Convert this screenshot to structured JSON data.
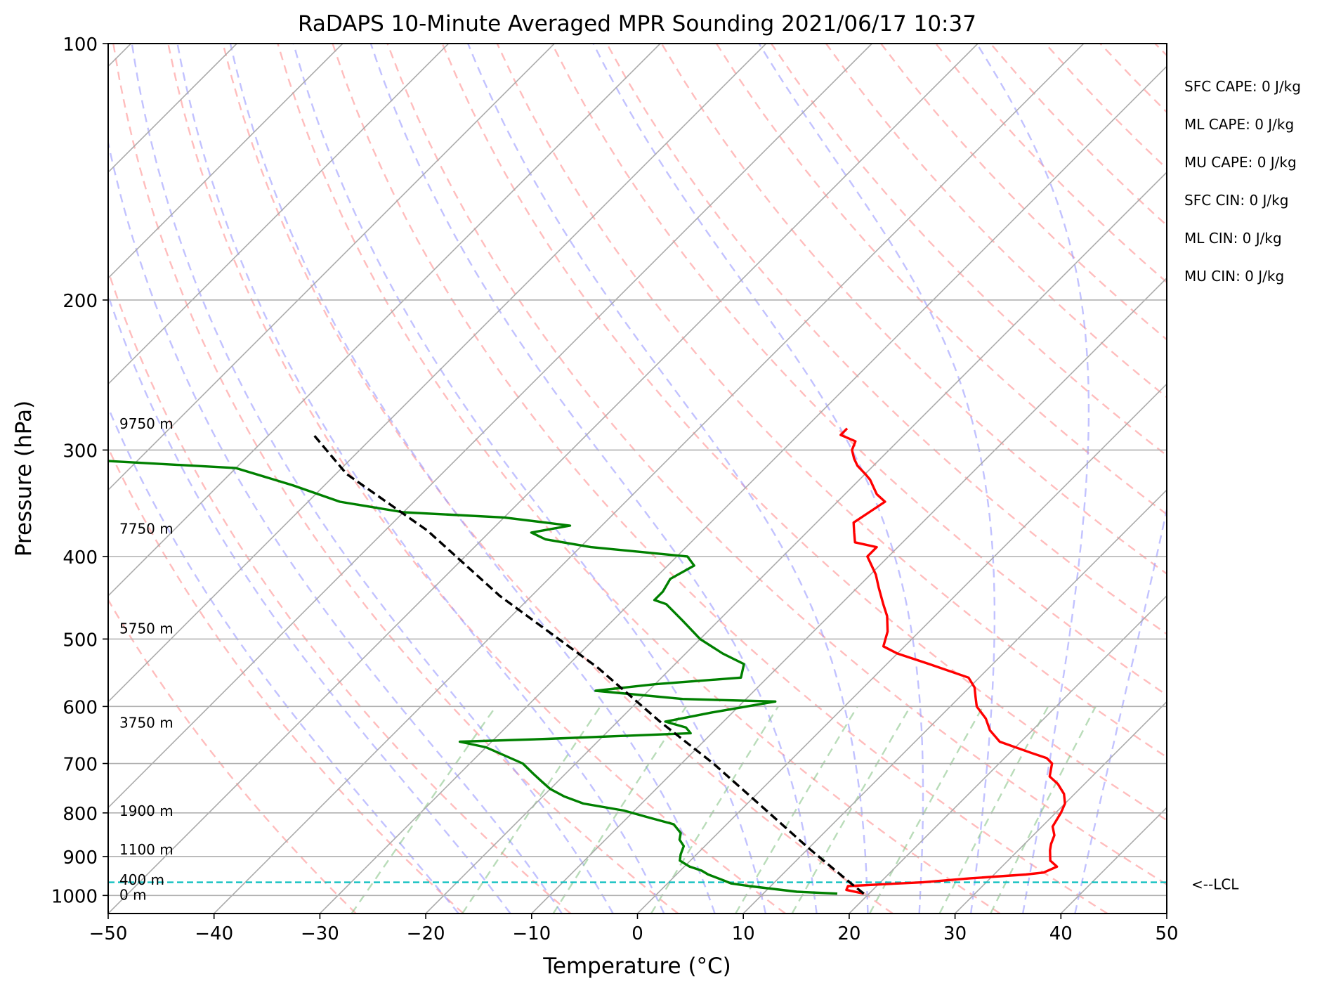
{
  "chart_data": {
    "type": "line",
    "title": "RaDAPS 10-Minute Averaged MPR Sounding 2021/06/17 10:37",
    "xlabel": "Temperature (°C)",
    "ylabel": "Pressure (hPa)",
    "xlim": [
      -50,
      50
    ],
    "ylim": [
      1050,
      100
    ],
    "y_scale": "log",
    "skew": true,
    "grid": true,
    "x_ticks": [
      "−50",
      "−40",
      "−30",
      "−20",
      "−10",
      "0",
      "10",
      "20",
      "30",
      "40",
      "50"
    ],
    "x_tick_values": [
      -50,
      -40,
      -30,
      -20,
      -10,
      0,
      10,
      20,
      30,
      40,
      50
    ],
    "y_ticks": [
      "100",
      "200",
      "300",
      "400",
      "500",
      "600",
      "700",
      "800",
      "900",
      "1000"
    ],
    "y_tick_values": [
      100,
      200,
      300,
      400,
      500,
      600,
      700,
      800,
      900,
      1000
    ],
    "height_labels": [
      {
        "text": "9750 m",
        "p": 280
      },
      {
        "text": "7750 m",
        "p": 372
      },
      {
        "text": "5750 m",
        "p": 487
      },
      {
        "text": "3750 m",
        "p": 628
      },
      {
        "text": "1900 m",
        "p": 797
      },
      {
        "text": "1100 m",
        "p": 885
      },
      {
        "text": "400 m",
        "p": 960
      },
      {
        "text": "0 m",
        "p": 1000
      }
    ],
    "indices": [
      "SFC CAPE: 0 J/kg",
      "ML CAPE: 0 J/kg",
      "MU CAPE: 0 J/kg",
      "SFC CIN: 0 J/kg",
      "ML CIN: 0 J/kg",
      "MU CIN: 0 J/kg"
    ],
    "lcl": {
      "label": "<--LCL",
      "p": 965
    },
    "series": [
      {
        "color": "#ff0000",
        "points": [
          [
            19.5,
            995
          ],
          [
            17.5,
            985
          ],
          [
            17.3,
            975
          ],
          [
            20.5,
            970
          ],
          [
            24.0,
            965
          ],
          [
            28.0,
            955
          ],
          [
            33.0,
            945
          ],
          [
            34.5,
            940
          ],
          [
            35.2,
            925
          ],
          [
            34.0,
            910
          ],
          [
            33.0,
            885
          ],
          [
            32.5,
            870
          ],
          [
            32.0,
            850
          ],
          [
            31.0,
            830
          ],
          [
            30.5,
            800
          ],
          [
            30.0,
            780
          ],
          [
            29.0,
            760
          ],
          [
            27.5,
            740
          ],
          [
            26.0,
            725
          ],
          [
            25.0,
            700
          ],
          [
            24.0,
            690
          ],
          [
            22.0,
            680
          ],
          [
            18.0,
            660
          ],
          [
            16.0,
            640
          ],
          [
            14.5,
            620
          ],
          [
            12.5,
            600
          ],
          [
            11.5,
            585
          ],
          [
            10.5,
            570
          ],
          [
            9.0,
            555
          ],
          [
            4.0,
            535
          ],
          [
            0.0,
            520
          ],
          [
            -2.0,
            510
          ],
          [
            -3.0,
            490
          ],
          [
            -4.5,
            470
          ],
          [
            -6.0,
            455
          ],
          [
            -8.0,
            435
          ],
          [
            -9.5,
            420
          ],
          [
            -12.0,
            400
          ],
          [
            -12.0,
            390
          ],
          [
            -14.5,
            385
          ],
          [
            -15.5,
            375
          ],
          [
            -16.5,
            365
          ],
          [
            -16.0,
            355
          ],
          [
            -15.5,
            345
          ],
          [
            -17.0,
            338
          ],
          [
            -19.0,
            325
          ],
          [
            -20.0,
            320
          ],
          [
            -21.5,
            313
          ],
          [
            -22.5,
            307
          ],
          [
            -23.5,
            300
          ],
          [
            -24.0,
            293
          ],
          [
            -26.0,
            288
          ],
          [
            -26.0,
            283
          ]
        ]
      },
      {
        "color": "#008000",
        "points": [
          [
            17.0,
            995
          ],
          [
            13.0,
            990
          ],
          [
            8.0,
            975
          ],
          [
            6.0,
            968
          ],
          [
            5.0,
            960
          ],
          [
            3.0,
            945
          ],
          [
            2.0,
            935
          ],
          [
            0.5,
            925
          ],
          [
            -1.0,
            910
          ],
          [
            -1.5,
            895
          ],
          [
            -2.0,
            875
          ],
          [
            -3.0,
            860
          ],
          [
            -3.5,
            845
          ],
          [
            -5.0,
            825
          ],
          [
            -8.0,
            810
          ],
          [
            -11.0,
            795
          ],
          [
            -15.5,
            780
          ],
          [
            -18.0,
            765
          ],
          [
            -20.0,
            750
          ],
          [
            -21.5,
            735
          ],
          [
            -23.0,
            720
          ],
          [
            -25.0,
            700
          ],
          [
            -30.0,
            670
          ],
          [
            -33.0,
            660
          ],
          [
            -25.0,
            655
          ],
          [
            -12.0,
            645
          ],
          [
            -13.0,
            635
          ],
          [
            -15.5,
            625
          ],
          [
            -12.0,
            610
          ],
          [
            -7.0,
            592
          ],
          [
            -16.0,
            588
          ],
          [
            -25.0,
            575
          ],
          [
            -20.0,
            565
          ],
          [
            -12.5,
            555
          ],
          [
            -13.5,
            535
          ],
          [
            -16.5,
            520
          ],
          [
            -20.0,
            500
          ],
          [
            -23.5,
            475
          ],
          [
            -26.5,
            455
          ],
          [
            -28.0,
            450
          ],
          [
            -28.0,
            440
          ],
          [
            -28.5,
            425
          ],
          [
            -27.5,
            410
          ],
          [
            -29.0,
            400
          ],
          [
            -39.0,
            390
          ],
          [
            -44.0,
            382
          ],
          [
            -46.0,
            375
          ],
          [
            -43.0,
            368
          ],
          [
            -50.0,
            360
          ],
          [
            -60.0,
            355
          ],
          [
            -67.0,
            345
          ],
          [
            -73.0,
            330
          ],
          [
            -80.0,
            315
          ],
          [
            -95.0,
            308
          ],
          [
            -97.0,
            305
          ]
        ]
      },
      {
        "color": "#000000",
        "dashed": true,
        "points": [
          [
            19.5,
            995
          ],
          [
            17.5,
            970
          ],
          [
            10.0,
            880
          ],
          [
            2.0,
            790
          ],
          [
            -7.0,
            700
          ],
          [
            -16.0,
            625
          ],
          [
            -27.0,
            540
          ],
          [
            -43.0,
            445
          ],
          [
            -56.0,
            373
          ],
          [
            -69.0,
            320
          ],
          [
            -76.0,
            287
          ]
        ]
      }
    ]
  }
}
